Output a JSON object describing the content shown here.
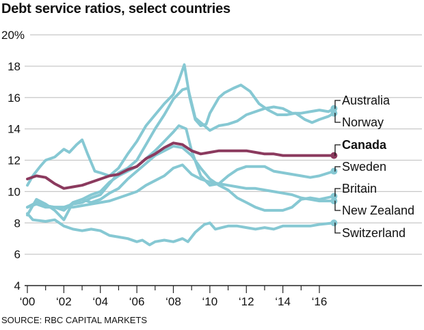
{
  "chart_data": {
    "type": "line",
    "title": "Debt service ratios, select countries",
    "source": "SOURCE: RBC CAPITAL MARKETS",
    "xlabel": "",
    "ylabel": "",
    "ylim": [
      4,
      20
    ],
    "xlim": [
      2000,
      2016.8
    ],
    "y_ticks": [
      {
        "value": 20,
        "label": "20%"
      },
      {
        "value": 18,
        "label": "18"
      },
      {
        "value": 16,
        "label": "16"
      },
      {
        "value": 14,
        "label": "14"
      },
      {
        "value": 12,
        "label": "12"
      },
      {
        "value": 10,
        "label": "10"
      },
      {
        "value": 8,
        "label": "8"
      },
      {
        "value": 6,
        "label": "6"
      },
      {
        "value": 4,
        "label": "4"
      }
    ],
    "x_ticks": [
      {
        "value": 2000,
        "label": "'00"
      },
      {
        "value": 2002,
        "label": "'02"
      },
      {
        "value": 2004,
        "label": "'04"
      },
      {
        "value": 2006,
        "label": "'06"
      },
      {
        "value": 2008,
        "label": "'08"
      },
      {
        "value": 2010,
        "label": "'10"
      },
      {
        "value": 2012,
        "label": "'12"
      },
      {
        "value": 2014,
        "label": "'14"
      },
      {
        "value": 2016,
        "label": "'16"
      }
    ],
    "grid": true,
    "legend": "right-end-labels",
    "colors": {
      "highlight": "#8b3a5e",
      "other": "#86c8d3",
      "grid": "#c8c8c8",
      "axis": "#222222"
    },
    "series": [
      {
        "name": "Australia",
        "highlight": false,
        "points": [
          [
            2000,
            9.0
          ],
          [
            2000.5,
            9.2
          ],
          [
            2001,
            9.0
          ],
          [
            2001.5,
            9.0
          ],
          [
            2002,
            9.0
          ],
          [
            2002.5,
            9.2
          ],
          [
            2003,
            9.3
          ],
          [
            2003.5,
            9.6
          ],
          [
            2004,
            9.8
          ],
          [
            2004.5,
            10.5
          ],
          [
            2005,
            11.2
          ],
          [
            2005.5,
            11.5
          ],
          [
            2006,
            12.0
          ],
          [
            2006.5,
            13.0
          ],
          [
            2007,
            14.0
          ],
          [
            2007.5,
            14.9
          ],
          [
            2008,
            15.9
          ],
          [
            2008.5,
            16.5
          ],
          [
            2008.8,
            16.6
          ],
          [
            2009.2,
            14.7
          ],
          [
            2009.6,
            14.3
          ],
          [
            2010,
            13.9
          ],
          [
            2010.5,
            14.2
          ],
          [
            2011,
            14.3
          ],
          [
            2011.5,
            14.5
          ],
          [
            2012,
            14.9
          ],
          [
            2012.5,
            15.1
          ],
          [
            2013,
            15.3
          ],
          [
            2013.5,
            15.4
          ],
          [
            2014,
            15.3
          ],
          [
            2014.5,
            15.0
          ],
          [
            2015,
            15.0
          ],
          [
            2015.5,
            15.1
          ],
          [
            2016,
            15.2
          ],
          [
            2016.5,
            15.1
          ],
          [
            2016.8,
            15.3
          ]
        ]
      },
      {
        "name": "Norway",
        "highlight": false,
        "points": [
          [
            2000,
            10.4
          ],
          [
            2000.3,
            11.0
          ],
          [
            2000.7,
            11.6
          ],
          [
            2001,
            12.0
          ],
          [
            2001.5,
            12.2
          ],
          [
            2002,
            12.7
          ],
          [
            2002.3,
            12.5
          ],
          [
            2002.7,
            13.0
          ],
          [
            2003,
            13.3
          ],
          [
            2003.3,
            12.4
          ],
          [
            2003.7,
            11.3
          ],
          [
            2004,
            11.2
          ],
          [
            2004.5,
            11.0
          ],
          [
            2005,
            11.5
          ],
          [
            2005.5,
            12.4
          ],
          [
            2006,
            13.2
          ],
          [
            2006.5,
            14.2
          ],
          [
            2007,
            14.9
          ],
          [
            2007.5,
            15.6
          ],
          [
            2008,
            16.2
          ],
          [
            2008.3,
            17.1
          ],
          [
            2008.6,
            18.1
          ],
          [
            2008.9,
            16.0
          ],
          [
            2009.2,
            14.6
          ],
          [
            2009.5,
            14.2
          ],
          [
            2009.8,
            14.3
          ],
          [
            2010,
            15.0
          ],
          [
            2010.5,
            16.0
          ],
          [
            2010.8,
            16.3
          ],
          [
            2011.3,
            16.6
          ],
          [
            2011.7,
            16.8
          ],
          [
            2012.2,
            16.4
          ],
          [
            2012.7,
            15.6
          ],
          [
            2013.2,
            15.2
          ],
          [
            2013.7,
            14.9
          ],
          [
            2014.2,
            14.9
          ],
          [
            2014.7,
            15.0
          ],
          [
            2015.2,
            14.6
          ],
          [
            2015.6,
            14.4
          ],
          [
            2016,
            14.6
          ],
          [
            2016.5,
            14.8
          ],
          [
            2016.8,
            15.0
          ]
        ]
      },
      {
        "name": "Canada",
        "highlight": true,
        "points": [
          [
            2000,
            10.8
          ],
          [
            2000.5,
            11.0
          ],
          [
            2001,
            10.9
          ],
          [
            2001.5,
            10.5
          ],
          [
            2002,
            10.2
          ],
          [
            2002.5,
            10.3
          ],
          [
            2003,
            10.4
          ],
          [
            2003.5,
            10.6
          ],
          [
            2004,
            10.8
          ],
          [
            2004.5,
            11.0
          ],
          [
            2005,
            11.1
          ],
          [
            2005.5,
            11.4
          ],
          [
            2006,
            11.6
          ],
          [
            2006.5,
            12.1
          ],
          [
            2007,
            12.4
          ],
          [
            2007.5,
            12.8
          ],
          [
            2008,
            13.1
          ],
          [
            2008.5,
            13.0
          ],
          [
            2009,
            12.6
          ],
          [
            2009.5,
            12.4
          ],
          [
            2010,
            12.5
          ],
          [
            2010.5,
            12.6
          ],
          [
            2011,
            12.6
          ],
          [
            2011.5,
            12.6
          ],
          [
            2012,
            12.6
          ],
          [
            2012.5,
            12.5
          ],
          [
            2013,
            12.4
          ],
          [
            2013.5,
            12.4
          ],
          [
            2014,
            12.3
          ],
          [
            2014.5,
            12.3
          ],
          [
            2015,
            12.3
          ],
          [
            2015.5,
            12.3
          ],
          [
            2016,
            12.3
          ],
          [
            2016.8,
            12.3
          ]
        ]
      },
      {
        "name": "Sweden",
        "highlight": false,
        "points": [
          [
            2000,
            9.0
          ],
          [
            2000.5,
            9.3
          ],
          [
            2001,
            9.1
          ],
          [
            2001.5,
            9.0
          ],
          [
            2002,
            8.8
          ],
          [
            2002.5,
            9.3
          ],
          [
            2003,
            9.5
          ],
          [
            2003.5,
            9.8
          ],
          [
            2004,
            10.0
          ],
          [
            2004.5,
            10.6
          ],
          [
            2005,
            11.0
          ],
          [
            2005.5,
            11.3
          ],
          [
            2006,
            11.6
          ],
          [
            2006.5,
            12.1
          ],
          [
            2007,
            12.6
          ],
          [
            2007.5,
            13.2
          ],
          [
            2008,
            13.8
          ],
          [
            2008.3,
            14.2
          ],
          [
            2008.7,
            14.0
          ],
          [
            2009,
            12.6
          ],
          [
            2009.5,
            11.0
          ],
          [
            2010,
            10.4
          ],
          [
            2010.5,
            10.5
          ],
          [
            2011,
            11.0
          ],
          [
            2011.5,
            11.4
          ],
          [
            2012,
            11.6
          ],
          [
            2012.5,
            11.6
          ],
          [
            2013,
            11.6
          ],
          [
            2013.5,
            11.3
          ],
          [
            2014,
            11.2
          ],
          [
            2014.5,
            11.1
          ],
          [
            2015,
            11.0
          ],
          [
            2015.5,
            10.9
          ],
          [
            2016,
            11.0
          ],
          [
            2016.8,
            11.3
          ]
        ]
      },
      {
        "name": "Britain",
        "highlight": false,
        "points": [
          [
            2000,
            8.5
          ],
          [
            2000.5,
            9.5
          ],
          [
            2001,
            9.2
          ],
          [
            2001.5,
            8.8
          ],
          [
            2002,
            8.2
          ],
          [
            2002.5,
            9.3
          ],
          [
            2003,
            9.5
          ],
          [
            2003.5,
            9.3
          ],
          [
            2004,
            9.5
          ],
          [
            2004.5,
            9.9
          ],
          [
            2005,
            10.2
          ],
          [
            2005.5,
            10.8
          ],
          [
            2006,
            11.3
          ],
          [
            2006.5,
            11.8
          ],
          [
            2007,
            12.3
          ],
          [
            2007.5,
            12.6
          ],
          [
            2008,
            12.9
          ],
          [
            2008.5,
            12.8
          ],
          [
            2009,
            12.3
          ],
          [
            2009.5,
            11.5
          ],
          [
            2010,
            10.8
          ],
          [
            2010.5,
            10.4
          ],
          [
            2011,
            10.1
          ],
          [
            2011.5,
            9.6
          ],
          [
            2012,
            9.3
          ],
          [
            2012.5,
            9.0
          ],
          [
            2013,
            8.8
          ],
          [
            2013.5,
            8.8
          ],
          [
            2014,
            8.8
          ],
          [
            2014.5,
            9.0
          ],
          [
            2015,
            9.5
          ],
          [
            2015.5,
            9.6
          ],
          [
            2016,
            9.5
          ],
          [
            2016.8,
            9.7
          ]
        ]
      },
      {
        "name": "New Zealand",
        "highlight": false,
        "points": [
          [
            2000,
            9.0
          ],
          [
            2000.5,
            9.3
          ],
          [
            2001,
            9.1
          ],
          [
            2001.5,
            9.0
          ],
          [
            2002,
            9.0
          ],
          [
            2002.5,
            9.0
          ],
          [
            2003,
            9.1
          ],
          [
            2003.5,
            9.2
          ],
          [
            2004,
            9.3
          ],
          [
            2004.5,
            9.4
          ],
          [
            2005,
            9.6
          ],
          [
            2005.5,
            9.8
          ],
          [
            2006,
            10.0
          ],
          [
            2006.5,
            10.4
          ],
          [
            2007,
            10.7
          ],
          [
            2007.5,
            11.0
          ],
          [
            2008,
            11.5
          ],
          [
            2008.5,
            11.7
          ],
          [
            2009,
            11.1
          ],
          [
            2009.5,
            10.8
          ],
          [
            2010,
            10.6
          ],
          [
            2010.5,
            10.5
          ],
          [
            2011,
            10.4
          ],
          [
            2011.5,
            10.3
          ],
          [
            2012,
            10.2
          ],
          [
            2012.5,
            10.2
          ],
          [
            2013,
            10.1
          ],
          [
            2013.5,
            10.0
          ],
          [
            2014,
            9.9
          ],
          [
            2014.5,
            9.8
          ],
          [
            2015,
            9.6
          ],
          [
            2015.5,
            9.5
          ],
          [
            2016,
            9.4
          ],
          [
            2016.8,
            9.4
          ]
        ]
      },
      {
        "name": "Switzerland",
        "highlight": false,
        "points": [
          [
            2000,
            8.6
          ],
          [
            2000.3,
            8.2
          ],
          [
            2001,
            8.1
          ],
          [
            2001.5,
            8.2
          ],
          [
            2002,
            7.8
          ],
          [
            2002.5,
            7.6
          ],
          [
            2003,
            7.5
          ],
          [
            2003.5,
            7.6
          ],
          [
            2004,
            7.5
          ],
          [
            2004.5,
            7.2
          ],
          [
            2005,
            7.1
          ],
          [
            2005.5,
            7.0
          ],
          [
            2006,
            6.8
          ],
          [
            2006.3,
            6.9
          ],
          [
            2006.7,
            6.6
          ],
          [
            2007,
            6.8
          ],
          [
            2007.5,
            6.9
          ],
          [
            2008,
            6.8
          ],
          [
            2008.5,
            7.0
          ],
          [
            2008.8,
            6.8
          ],
          [
            2009.2,
            7.4
          ],
          [
            2009.7,
            7.9
          ],
          [
            2010,
            8.0
          ],
          [
            2010.3,
            7.6
          ],
          [
            2011,
            7.8
          ],
          [
            2011.5,
            7.8
          ],
          [
            2012,
            7.7
          ],
          [
            2012.5,
            7.6
          ],
          [
            2013,
            7.7
          ],
          [
            2013.5,
            7.6
          ],
          [
            2014,
            7.8
          ],
          [
            2014.5,
            7.8
          ],
          [
            2015,
            7.8
          ],
          [
            2015.5,
            7.8
          ],
          [
            2016,
            7.9
          ],
          [
            2016.8,
            8.0
          ]
        ]
      }
    ]
  }
}
